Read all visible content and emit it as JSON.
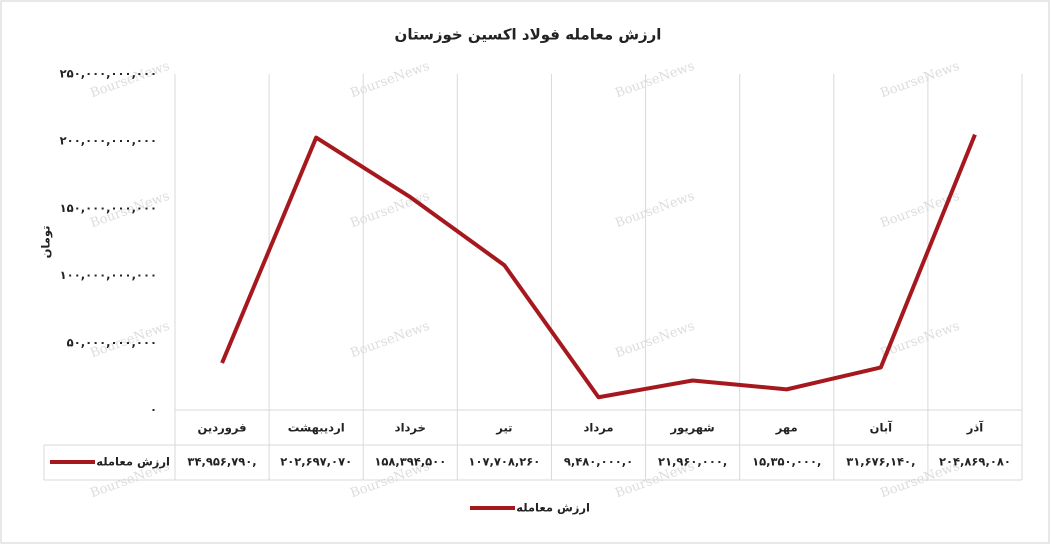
{
  "chart_data": {
    "type": "line",
    "title": "ارزش معامله فولاد اکسین خوزستان",
    "y_label": "تومان",
    "watermark": "BourseNews",
    "categories": [
      "فروردین",
      "اردیبهشت",
      "خرداد",
      "تیر",
      "مرداد",
      "شهریور",
      "مهر",
      "آبان",
      "آذر"
    ],
    "series": [
      {
        "name": "ارزش معامله",
        "color": "#a5191e",
        "values": [
          34956790000,
          202697070000,
          158394500000,
          107708260000,
          9480000000,
          21960000000,
          15350000000,
          31676140000,
          204869080000
        ],
        "value_labels": [
          "۳۴,۹۵۶,۷۹۰,",
          "۲۰۲,۶۹۷,۰۷۰",
          "۱۵۸,۳۹۴,۵۰۰",
          "۱۰۷,۷۰۸,۲۶۰",
          "۹,۴۸۰,۰۰۰,۰",
          "۲۱,۹۶۰,۰۰۰,",
          "۱۵,۳۵۰,۰۰۰,",
          "۳۱,۶۷۶,۱۴۰,",
          "۲۰۴,۸۶۹,۰۸۰"
        ]
      }
    ],
    "ylim": [
      0,
      250000000000
    ],
    "yticks": [
      {
        "value": 0,
        "label": "۰"
      },
      {
        "value": 50000000000,
        "label": "۵۰,۰۰۰,۰۰۰,۰۰۰"
      },
      {
        "value": 100000000000,
        "label": "۱۰۰,۰۰۰,۰۰۰,۰۰۰"
      },
      {
        "value": 150000000000,
        "label": "۱۵۰,۰۰۰,۰۰۰,۰۰۰"
      },
      {
        "value": 200000000000,
        "label": "۲۰۰,۰۰۰,۰۰۰,۰۰۰"
      },
      {
        "value": 250000000000,
        "label": "۲۵۰,۰۰۰,۰۰۰,۰۰۰"
      }
    ],
    "legend": "bottom"
  }
}
